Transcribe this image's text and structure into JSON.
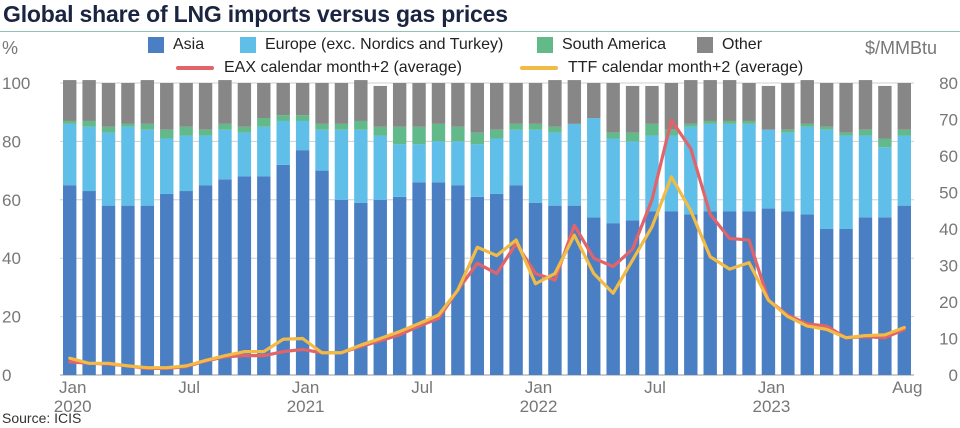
{
  "title": "Global share of LNG imports versus gas prices",
  "source": "Source: ICIS",
  "colors": {
    "asia": "#4a7fc4",
    "europe": "#5fbfe8",
    "south_america": "#62b98a",
    "other": "#878787",
    "eax": "#e0646a",
    "ttf": "#f2bb45",
    "grid": "#cfcfcf"
  },
  "chart_data": {
    "type": "bar",
    "stacked": true,
    "title": "Global share of LNG imports versus gas prices",
    "ylabel": "%",
    "y2label": "$/MMBtu",
    "ylim": [
      0,
      100
    ],
    "y2lim": [
      0,
      80
    ],
    "yticks": [
      "0",
      "20",
      "40",
      "60",
      "80",
      "100"
    ],
    "y2ticks": [
      "0",
      "10",
      "20",
      "30",
      "40",
      "50",
      "60",
      "70",
      "80"
    ],
    "grid": true,
    "legend_placement": "top",
    "x_tick_labels": [
      {
        "index": 0,
        "label": "Jan",
        "year": "2020"
      },
      {
        "index": 6,
        "label": "Jul",
        "year": ""
      },
      {
        "index": 12,
        "label": "Jan",
        "year": "2021"
      },
      {
        "index": 18,
        "label": "Jul",
        "year": ""
      },
      {
        "index": 24,
        "label": "Jan",
        "year": "2022"
      },
      {
        "index": 30,
        "label": "Jul",
        "year": ""
      },
      {
        "index": 36,
        "label": "Jan",
        "year": "2023"
      },
      {
        "index": 43,
        "label": "Aug",
        "year": ""
      }
    ],
    "categories": [
      "2020-01",
      "2020-02",
      "2020-03",
      "2020-04",
      "2020-05",
      "2020-06",
      "2020-07",
      "2020-08",
      "2020-09",
      "2020-10",
      "2020-11",
      "2020-12",
      "2021-01",
      "2021-02",
      "2021-03",
      "2021-04",
      "2021-05",
      "2021-06",
      "2021-07",
      "2021-08",
      "2021-09",
      "2021-10",
      "2021-11",
      "2021-12",
      "2022-01",
      "2022-02",
      "2022-03",
      "2022-04",
      "2022-05",
      "2022-06",
      "2022-07",
      "2022-08",
      "2022-09",
      "2022-10",
      "2022-11",
      "2022-12",
      "2023-01",
      "2023-02",
      "2023-03",
      "2023-04",
      "2023-05",
      "2023-06",
      "2023-07",
      "2023-08"
    ],
    "series": [
      {
        "name": "Asia",
        "type": "bar",
        "axis": "left",
        "values": [
          65,
          63,
          58,
          58,
          58,
          62,
          63,
          65,
          67,
          68,
          68,
          72,
          77,
          70,
          60,
          59,
          60,
          61,
          66,
          66,
          65,
          61,
          62,
          65,
          59,
          58,
          58,
          54,
          52,
          53,
          56,
          56,
          55,
          56,
          56,
          56,
          57,
          56,
          55,
          50,
          50,
          54,
          54,
          58
        ]
      },
      {
        "name": "Europe (exc. Nordics and Turkey)",
        "type": "bar",
        "axis": "left",
        "values": [
          21,
          22,
          25,
          27,
          26,
          19,
          19,
          17,
          17,
          15,
          17,
          15,
          10,
          14,
          24,
          25,
          22,
          18,
          13,
          14,
          15,
          18,
          19,
          19,
          25,
          25,
          28,
          34,
          29,
          27,
          26,
          26,
          30,
          30,
          30,
          30,
          27,
          27,
          30,
          34,
          32,
          28,
          24,
          24
        ]
      },
      {
        "name": "South America",
        "type": "bar",
        "axis": "left",
        "values": [
          1,
          2,
          2,
          1,
          2,
          3,
          3,
          2,
          2,
          2,
          3,
          2,
          2,
          2,
          2,
          3,
          3,
          6,
          6,
          6,
          5,
          4,
          3,
          2,
          2,
          2,
          0,
          0,
          2,
          3,
          4,
          2,
          1,
          1,
          1,
          1,
          0,
          1,
          1,
          1,
          1,
          2,
          3,
          2
        ]
      },
      {
        "name": "Other",
        "type": "bar",
        "axis": "left",
        "values": [
          14,
          14,
          15,
          14,
          15,
          16,
          15,
          16,
          15,
          15,
          12,
          11,
          11,
          14,
          14,
          14,
          14,
          15,
          15,
          14,
          15,
          17,
          16,
          14,
          14,
          16,
          15,
          12,
          17,
          16,
          13,
          16,
          15,
          14,
          14,
          13,
          15,
          16,
          15,
          15,
          17,
          17,
          18,
          16
        ]
      },
      {
        "name": "EAX calendar month+2 (average)",
        "type": "line",
        "axis": "right",
        "values": [
          3.6,
          3.2,
          3.0,
          2.5,
          1.8,
          1.8,
          2.3,
          3.8,
          5.0,
          5.3,
          5.3,
          6.4,
          7.0,
          6.1,
          6.1,
          7.8,
          9.4,
          11.0,
          13.4,
          15.5,
          23.3,
          30.6,
          27.8,
          36.0,
          27.8,
          26.0,
          41.0,
          32.0,
          29.7,
          34.5,
          48.0,
          69.8,
          62.0,
          44.0,
          37.4,
          37.0,
          20.5,
          16.4,
          14.0,
          13.4,
          10.2,
          10.5,
          10.2,
          12.5
        ]
      },
      {
        "name": "TTF calendar month+2 (average)",
        "type": "line",
        "axis": "right",
        "values": [
          4.6,
          3.2,
          3.2,
          2.5,
          2.0,
          2.0,
          2.5,
          4.0,
          5.3,
          6.4,
          6.4,
          9.8,
          10.0,
          6.1,
          6.1,
          8.2,
          10.0,
          11.9,
          14.1,
          16.4,
          23.3,
          35.0,
          32.7,
          37.0,
          25.0,
          27.8,
          38.3,
          27.8,
          22.4,
          31.5,
          40.6,
          54.3,
          45.0,
          32.4,
          29.0,
          30.8,
          20.5,
          16.0,
          13.4,
          12.5,
          10.2,
          10.8,
          11.0,
          13.0
        ]
      }
    ]
  },
  "legend": [
    {
      "key": "asia",
      "label": "Asia",
      "kind": "swatch"
    },
    {
      "key": "europe",
      "label": "Europe (exc. Nordics and Turkey)",
      "kind": "swatch"
    },
    {
      "key": "south_america",
      "label": "South America",
      "kind": "swatch"
    },
    {
      "key": "other",
      "label": "Other",
      "kind": "swatch"
    },
    {
      "key": "eax",
      "label": "EAX calendar month+2 (average)",
      "kind": "line"
    },
    {
      "key": "ttf",
      "label": "TTF calendar month+2 (average)",
      "kind": "line"
    }
  ]
}
